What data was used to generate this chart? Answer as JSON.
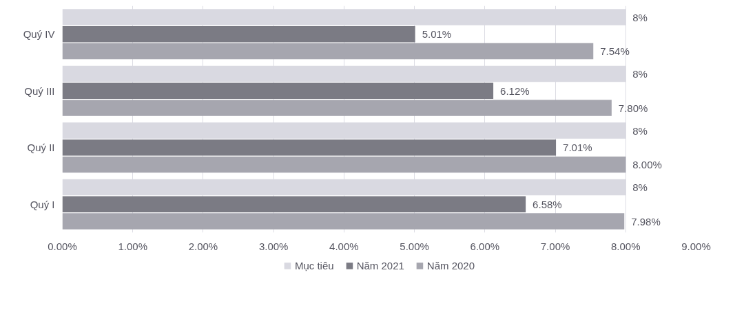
{
  "chart_data": {
    "type": "bar",
    "orientation": "horizontal",
    "categories": [
      "Quý IV",
      "Quý III",
      "Quý II",
      "Quý I"
    ],
    "series": [
      {
        "name": "Mục tiêu",
        "color": "#d9d9e1",
        "values": [
          8,
          8,
          8,
          8
        ],
        "value_labels": [
          "8%",
          "8%",
          "8%",
          "8%"
        ]
      },
      {
        "name": "Năm 2021",
        "color": "#7b7b84",
        "values": [
          5.01,
          6.12,
          7.01,
          6.58
        ],
        "value_labels": [
          "5.01%",
          "6.12%",
          "7.01%",
          "6.58%"
        ]
      },
      {
        "name": "Năm 2020",
        "color": "#a6a6af",
        "values": [
          7.54,
          7.8,
          8.0,
          7.98
        ],
        "value_labels": [
          "7.54%",
          "7.80%",
          "8.00%",
          "7.98%"
        ]
      }
    ],
    "xlim": [
      0,
      9
    ],
    "xticks": [
      {
        "value": 0,
        "label": "0.00%"
      },
      {
        "value": 1,
        "label": "1.00%"
      },
      {
        "value": 2,
        "label": "2.00%"
      },
      {
        "value": 3,
        "label": "3.00%"
      },
      {
        "value": 4,
        "label": "4.00%"
      },
      {
        "value": 5,
        "label": "5.00%"
      },
      {
        "value": 6,
        "label": "6.00%"
      },
      {
        "value": 7,
        "label": "7.00%"
      },
      {
        "value": 8,
        "label": "8.00%"
      },
      {
        "value": 9,
        "label": "9.00%"
      }
    ],
    "grid": "x",
    "legend": "bottom"
  }
}
